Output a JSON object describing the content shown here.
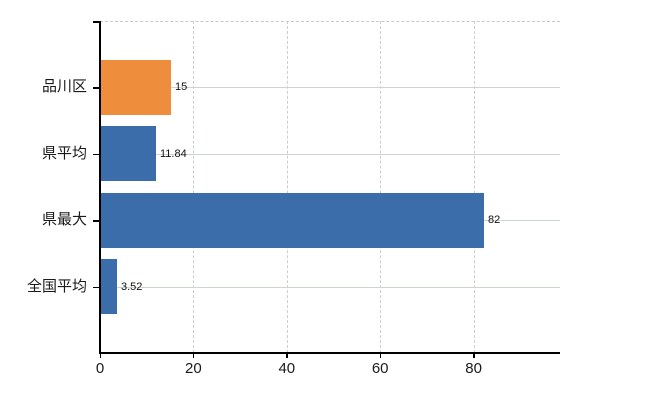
{
  "background": "#ffffff",
  "chart_data": {
    "type": "bar",
    "orientation": "horizontal",
    "title": "",
    "xlabel": "",
    "ylabel": "",
    "categories": [
      "品川区",
      "県平均",
      "県最大",
      "全国平均"
    ],
    "values": [
      15,
      11.84,
      82,
      3.52
    ],
    "value_labels": [
      "15",
      "11.84",
      "82",
      "3.52"
    ],
    "bar_colors": [
      "#EE8E3C",
      "#3B6DAB",
      "#3B6DAB",
      "#3B6DAB"
    ],
    "xticks": [
      0,
      20,
      40,
      60,
      80
    ],
    "xtick_labels": [
      "0",
      "20",
      "40",
      "60",
      "80"
    ],
    "xlim": [
      0,
      98.5
    ],
    "grid": true,
    "grid_horizontal_style": "solid",
    "grid_vertical_style": "dashed",
    "top_border_style": "dashed",
    "legend": false,
    "colors": {
      "bar_orange": "#EE8E3C",
      "bar_blue": "#3B6DAB",
      "axis": "#000000",
      "grid_horizontal": "#ccd6cc",
      "grid_vertical": "#c8d1c8",
      "top_border": "#c9c9c9",
      "text": "#1a1a1a"
    }
  }
}
